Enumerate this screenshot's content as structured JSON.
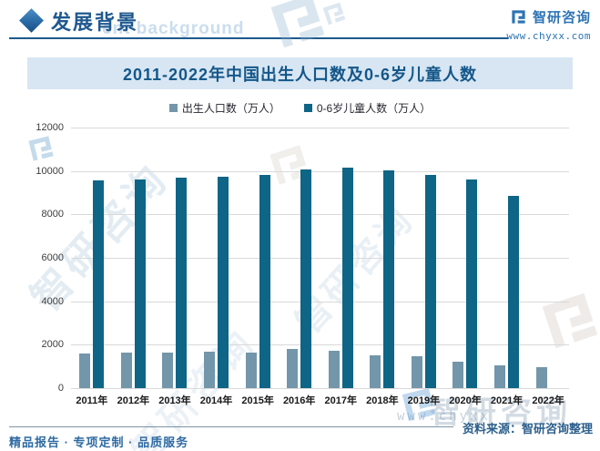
{
  "header": {
    "section_title": "发展背景",
    "section_title_ghost": "ent background",
    "brand_name": "智研咨询",
    "brand_url": "www.chyxx.com"
  },
  "chart_data": {
    "type": "bar",
    "title": "2011-2022年中国出生人口数及0-6岁儿童人数",
    "categories": [
      "2011年",
      "2012年",
      "2013年",
      "2014年",
      "2015年",
      "2016年",
      "2017年",
      "2018年",
      "2019年",
      "2020年",
      "2021年",
      "2022年"
    ],
    "series": [
      {
        "name": "出生人口数（万人）",
        "color": "#7396aa",
        "values": [
          1600,
          1635,
          1640,
          1690,
          1655,
          1785,
          1725,
          1525,
          1465,
          1200,
          1060,
          955
        ]
      },
      {
        "name": "0-6岁儿童人数（万人）",
        "color": "#0e6586",
        "values": [
          9550,
          9620,
          9700,
          9750,
          9800,
          10050,
          10160,
          10010,
          9820,
          9600,
          8870,
          null
        ]
      }
    ],
    "xlabel": "",
    "ylabel": "",
    "ylim": [
      0,
      12000
    ],
    "yticks": [
      0,
      2000,
      4000,
      6000,
      8000,
      10000,
      12000
    ],
    "grid": true,
    "legend_position": "top"
  },
  "footer": {
    "source": "资料来源：智研咨询整理",
    "tagline": "精品报告 · 专项定制 · 品质服务"
  },
  "watermarks": {
    "brand_text": "智研咨询",
    "brand_url_ghost": "www.chyxx"
  }
}
